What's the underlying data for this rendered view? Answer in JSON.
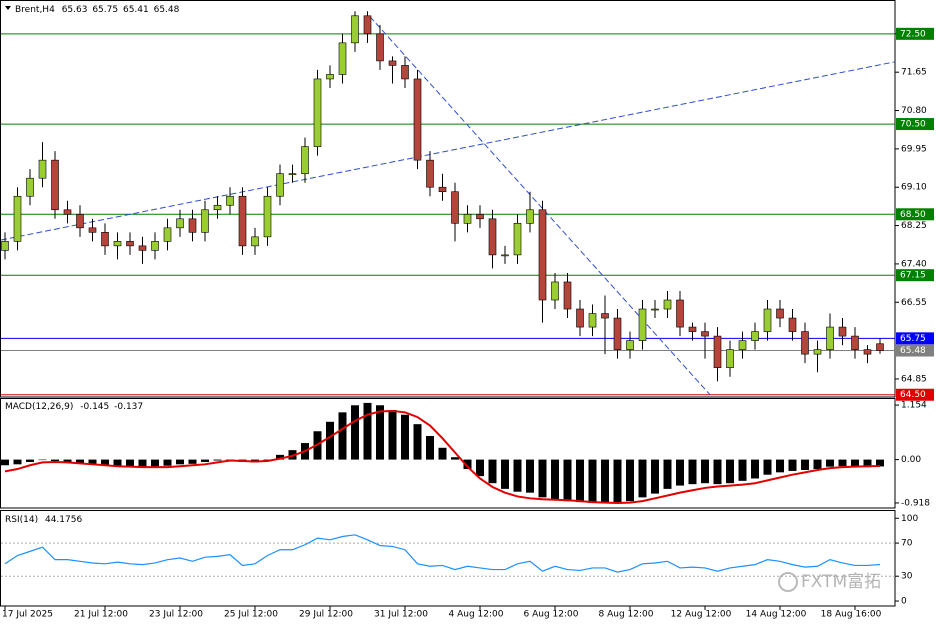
{
  "chart_data": [
    {
      "type": "candlestick",
      "title": "Brent,H4",
      "open": [
        67.7,
        67.9,
        68.9,
        69.3,
        69.7,
        68.6,
        68.5,
        68.2,
        68.1,
        67.8,
        67.9,
        67.8,
        67.7,
        67.9,
        68.2,
        68.4,
        68.1,
        68.6,
        68.7,
        68.9,
        67.8,
        68.0,
        68.9,
        69.4,
        69.4,
        70.0,
        71.5,
        71.6,
        72.3,
        72.9,
        72.5,
        71.9,
        71.8,
        71.5,
        69.7,
        69.1,
        69.0,
        68.3,
        68.5,
        68.4,
        67.6,
        67.6,
        68.3,
        68.6,
        66.6,
        67.0,
        66.4,
        66.0,
        66.3,
        66.2,
        65.5,
        65.7,
        66.4,
        66.4,
        66.6,
        66.0,
        65.9,
        65.8,
        65.1,
        65.5,
        65.7,
        65.9,
        66.4,
        66.2,
        65.9,
        65.4,
        65.5,
        66.0,
        65.8,
        65.5,
        65.63
      ],
      "high": [
        68.1,
        69.1,
        69.5,
        70.1,
        69.9,
        68.8,
        68.7,
        68.4,
        68.3,
        68.1,
        68.1,
        68.0,
        68.1,
        68.4,
        68.6,
        68.6,
        68.8,
        68.9,
        69.1,
        69.1,
        68.2,
        69.1,
        69.6,
        69.6,
        70.2,
        71.7,
        71.8,
        72.5,
        73.0,
        73.0,
        72.7,
        72.0,
        72.0,
        71.7,
        69.9,
        69.4,
        69.2,
        68.7,
        68.7,
        68.6,
        67.8,
        68.5,
        69.0,
        68.8,
        67.2,
        67.2,
        66.6,
        66.5,
        66.7,
        66.4,
        65.9,
        66.6,
        66.6,
        66.8,
        66.8,
        66.1,
        66.1,
        66.0,
        65.7,
        65.9,
        66.1,
        66.6,
        66.6,
        66.4,
        66.1,
        65.7,
        66.3,
        66.2,
        66.0,
        65.6,
        65.75
      ],
      "low": [
        67.5,
        67.7,
        68.7,
        69.1,
        68.4,
        68.3,
        68.0,
        67.9,
        67.6,
        67.5,
        67.6,
        67.4,
        67.5,
        67.7,
        68.0,
        67.9,
        67.9,
        68.4,
        68.5,
        67.6,
        67.6,
        67.8,
        68.7,
        69.2,
        69.2,
        69.8,
        71.3,
        71.4,
        72.1,
        72.3,
        71.7,
        71.4,
        71.3,
        69.5,
        68.9,
        68.8,
        67.9,
        68.1,
        68.2,
        67.3,
        67.4,
        67.4,
        68.1,
        66.1,
        66.4,
        66.2,
        65.8,
        65.8,
        65.4,
        65.3,
        65.3,
        65.5,
        66.2,
        66.2,
        65.8,
        65.7,
        65.3,
        64.8,
        64.9,
        65.3,
        65.5,
        65.7,
        66.0,
        65.7,
        65.2,
        65.0,
        65.3,
        65.6,
        65.3,
        65.2,
        65.41
      ],
      "close": [
        67.9,
        68.9,
        69.3,
        69.7,
        68.6,
        68.5,
        68.2,
        68.1,
        67.8,
        67.9,
        67.8,
        67.7,
        67.9,
        68.2,
        68.4,
        68.1,
        68.6,
        68.7,
        68.9,
        67.8,
        68.0,
        68.9,
        69.4,
        69.4,
        70.0,
        71.5,
        71.6,
        72.3,
        72.9,
        72.5,
        71.9,
        71.8,
        71.5,
        69.7,
        69.1,
        69.0,
        68.3,
        68.5,
        68.4,
        67.6,
        67.6,
        68.3,
        68.6,
        66.6,
        67.0,
        66.4,
        66.0,
        66.3,
        66.2,
        65.5,
        65.7,
        66.4,
        66.4,
        66.6,
        66.0,
        65.9,
        65.8,
        65.1,
        65.5,
        65.7,
        65.9,
        66.4,
        66.2,
        65.9,
        65.4,
        65.5,
        66.0,
        65.8,
        65.5,
        65.4,
        65.48
      ],
      "up_color": "#9acd32",
      "down_color": "#b5443a",
      "ylim": [
        64.45,
        73.25
      ],
      "yticks": [
        {
          "value": 72.5,
          "label": "72.50"
        },
        71.65,
        {
          "value": 70.8,
          "label": "70.80"
        },
        69.95,
        {
          "value": 69.1,
          "label": "69.10"
        },
        68.25,
        {
          "value": 67.4,
          "label": "67.40"
        },
        66.55,
        64.85
      ],
      "levels": [
        {
          "value": 72.5,
          "label": "72.50",
          "color": "#008000",
          "label_text_color": "#ffffff"
        },
        {
          "value": 70.5,
          "label": "70.50",
          "color": "#008000",
          "label_text_color": "#ffffff"
        },
        {
          "value": 68.5,
          "label": "68.50",
          "color": "#008000",
          "label_text_color": "#ffffff"
        },
        {
          "value": 67.15,
          "label": "67.15",
          "color": "#008000",
          "label_text_color": "#ffffff"
        },
        {
          "value": 65.75,
          "label": "65.75",
          "color": "#0000ff",
          "label_text_color": "#ffffff"
        },
        {
          "value": 65.48,
          "label": "65.48",
          "color": "#808080",
          "label_text_color": "#ffffff"
        },
        {
          "value": 64.5,
          "label": "64.50",
          "color": "#e00000",
          "label_text_color": "#ffffff"
        }
      ],
      "trendlines": [
        {
          "x": [
            -0.4,
            71.2
          ],
          "y": [
            67.93,
            71.88
          ]
        },
        {
          "x": [
            29.2,
            56.4
          ],
          "y": [
            72.88,
            64.5
          ]
        }
      ],
      "trendline_color": "#3050c8"
    },
    {
      "type": "macd",
      "label": "MACD(12,26,9)",
      "histogram": [
        -0.12,
        -0.1,
        -0.05,
        0.0,
        -0.03,
        -0.06,
        -0.08,
        -0.1,
        -0.12,
        -0.13,
        -0.14,
        -0.15,
        -0.15,
        -0.13,
        -0.1,
        -0.09,
        -0.05,
        -0.02,
        0.0,
        -0.05,
        -0.06,
        -0.02,
        0.1,
        0.2,
        0.35,
        0.6,
        0.8,
        1.0,
        1.15,
        1.2,
        1.15,
        1.05,
        0.95,
        0.75,
        0.5,
        0.25,
        0.05,
        -0.2,
        -0.35,
        -0.5,
        -0.62,
        -0.68,
        -0.7,
        -0.8,
        -0.85,
        -0.88,
        -0.9,
        -0.92,
        -0.92,
        -0.9,
        -0.88,
        -0.8,
        -0.72,
        -0.62,
        -0.55,
        -0.52,
        -0.5,
        -0.52,
        -0.5,
        -0.45,
        -0.4,
        -0.32,
        -0.27,
        -0.24,
        -0.22,
        -0.2,
        -0.15,
        -0.14,
        -0.15,
        -0.16,
        -0.145
      ],
      "signal": [
        -0.25,
        -0.2,
        -0.12,
        -0.06,
        -0.05,
        -0.06,
        -0.08,
        -0.1,
        -0.12,
        -0.14,
        -0.15,
        -0.16,
        -0.16,
        -0.16,
        -0.14,
        -0.12,
        -0.1,
        -0.06,
        -0.02,
        -0.03,
        -0.04,
        -0.03,
        0.02,
        0.08,
        0.18,
        0.32,
        0.48,
        0.65,
        0.82,
        0.95,
        1.02,
        1.03,
        1.0,
        0.9,
        0.72,
        0.45,
        0.15,
        -0.15,
        -0.4,
        -0.58,
        -0.7,
        -0.78,
        -0.82,
        -0.84,
        -0.85,
        -0.86,
        -0.88,
        -0.9,
        -0.91,
        -0.92,
        -0.91,
        -0.88,
        -0.82,
        -0.76,
        -0.7,
        -0.65,
        -0.6,
        -0.57,
        -0.55,
        -0.53,
        -0.5,
        -0.44,
        -0.38,
        -0.32,
        -0.27,
        -0.22,
        -0.18,
        -0.16,
        -0.15,
        -0.14,
        -0.137
      ],
      "histogram_color": "#000000",
      "signal_color": "#e00000",
      "ylim": [
        -1.025,
        1.304
      ],
      "yticks": [
        1.154,
        {
          "value": 0,
          "label": "0.00"
        },
        -0.918
      ]
    },
    {
      "type": "line",
      "label": "RSI(14)",
      "values": [
        45,
        55,
        60,
        65,
        50,
        50,
        48,
        46,
        45,
        47,
        45,
        44,
        46,
        50,
        52,
        48,
        53,
        54,
        56,
        43,
        45,
        55,
        62,
        62,
        68,
        76,
        74,
        78,
        80,
        74,
        67,
        66,
        62,
        45,
        42,
        43,
        38,
        42,
        40,
        38,
        38,
        45,
        48,
        36,
        42,
        38,
        37,
        40,
        40,
        35,
        38,
        45,
        46,
        48,
        40,
        41,
        40,
        36,
        40,
        42,
        44,
        50,
        48,
        44,
        41,
        42,
        50,
        46,
        43,
        43,
        44.1756
      ],
      "color": "#1e90ff",
      "ylim": [
        -6,
        110
      ],
      "yticks": [
        100,
        70,
        30,
        0
      ],
      "levels": [
        70,
        30
      ],
      "categories": [
        "17 Jul 2025",
        null,
        null,
        null,
        null,
        null,
        null,
        null,
        "21 Jul 12:00",
        null,
        null,
        null,
        null,
        null,
        "23 Jul 12:00",
        null,
        null,
        null,
        null,
        null,
        "25 Jul 12:00",
        null,
        null,
        null,
        null,
        null,
        "29 Jul 12:00",
        null,
        null,
        null,
        null,
        null,
        "31 Jul 12:00",
        null,
        null,
        null,
        null,
        null,
        "4 Aug 12:00",
        null,
        null,
        null,
        null,
        null,
        "6 Aug 12:00",
        null,
        null,
        null,
        null,
        null,
        "8 Aug 12:00",
        null,
        null,
        null,
        null,
        null,
        "12 Aug 12:00",
        null,
        null,
        null,
        null,
        null,
        "14 Aug 12:00",
        null,
        null,
        null,
        null,
        null,
        "18 Aug 16:00",
        null,
        null
      ]
    }
  ],
  "watermark": "FXTM富拓"
}
